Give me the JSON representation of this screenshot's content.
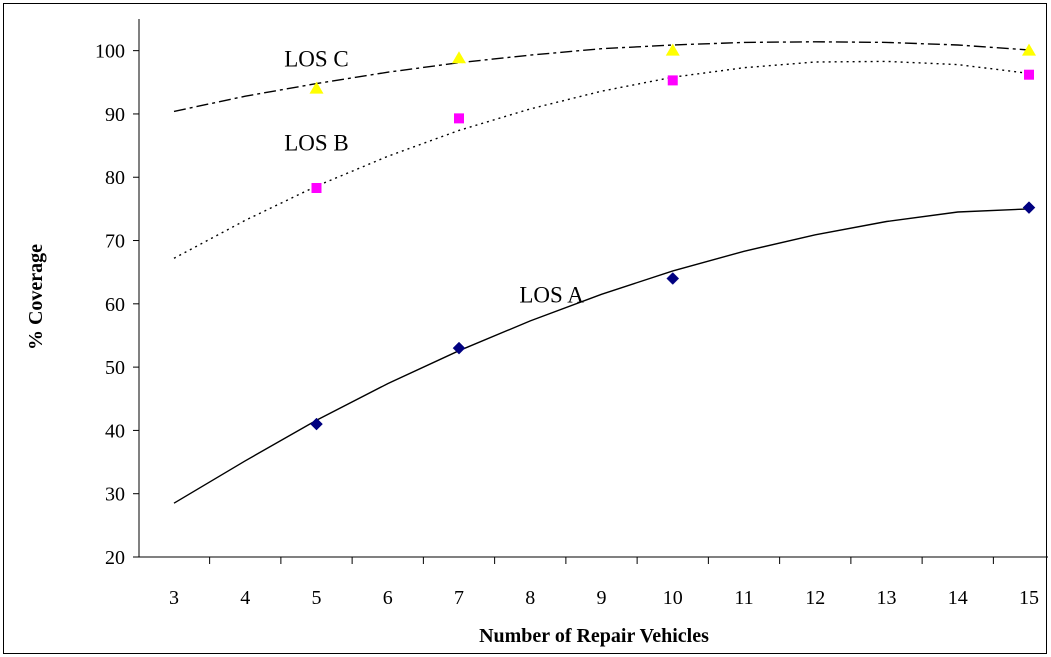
{
  "chart_data": {
    "type": "scatter",
    "title": "",
    "xlabel": "Number of Repair Vehicles",
    "ylabel": "% Coverage",
    "categories": [
      "3",
      "4",
      "5",
      "6",
      "7",
      "8",
      "9",
      "10",
      "11",
      "12",
      "13",
      "14",
      "15"
    ],
    "ylim": [
      20,
      100
    ],
    "yticks": [
      20,
      30,
      40,
      50,
      60,
      70,
      80,
      90,
      100
    ],
    "grid": false,
    "legend": "none",
    "series": [
      {
        "name": "LOS A",
        "color": "#000080",
        "marker": "diamond",
        "x": [
          "5",
          "7",
          "10",
          "15"
        ],
        "values": [
          41,
          53,
          64,
          75.2
        ],
        "trend_style": "solid",
        "trend_x": [
          "3",
          "4",
          "5",
          "6",
          "7",
          "8",
          "9",
          "10",
          "11",
          "12",
          "13",
          "14",
          "15"
        ],
        "trend": [
          28.5,
          35.2,
          41.6,
          47.4,
          52.6,
          57.3,
          61.5,
          65.2,
          68.3,
          70.9,
          73.0,
          74.5,
          75.0
        ]
      },
      {
        "name": "LOS B",
        "color": "#FF00FF",
        "marker": "square",
        "x": [
          "5",
          "7",
          "10",
          "15"
        ],
        "values": [
          78.3,
          89.3,
          95.3,
          96.2
        ],
        "trend_style": "dotted",
        "trend_x": [
          "3",
          "4",
          "5",
          "6",
          "7",
          "8",
          "9",
          "10",
          "11",
          "12",
          "13",
          "14",
          "15"
        ],
        "trend": [
          67.2,
          73.2,
          78.6,
          83.3,
          87.4,
          90.8,
          93.6,
          95.8,
          97.3,
          98.2,
          98.3,
          97.8,
          96.4
        ]
      },
      {
        "name": "LOS C",
        "color": "#FFFF00",
        "marker": "triangle",
        "x": [
          "5",
          "7",
          "10",
          "15"
        ],
        "values": [
          94,
          98.8,
          100,
          100
        ],
        "trend_style": "dashdot",
        "trend_x": [
          "3",
          "4",
          "5",
          "6",
          "7",
          "8",
          "9",
          "10",
          "11",
          "12",
          "13",
          "14",
          "15"
        ],
        "trend": [
          90.4,
          92.8,
          94.8,
          96.6,
          98.1,
          99.3,
          100.3,
          100.9,
          101.3,
          101.4,
          101.3,
          100.9,
          100.1
        ]
      }
    ],
    "series_labels": [
      {
        "text": "LOS C",
        "anchor_x": "5",
        "anchor_y": 97.5
      },
      {
        "text": "LOS B",
        "anchor_x": "5",
        "anchor_y": 84.2
      },
      {
        "text": "LOS A",
        "anchor_x": "8.3",
        "anchor_y": 60.2
      }
    ]
  }
}
